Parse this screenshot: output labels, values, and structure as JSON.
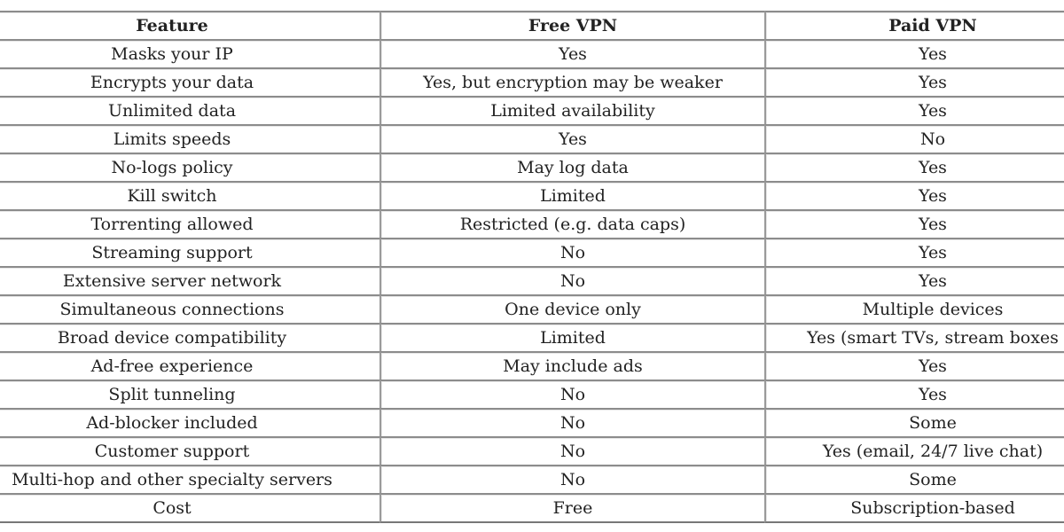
{
  "table": {
    "headers": [
      "Feature",
      "Free VPN",
      "Paid VPN"
    ],
    "rows": [
      [
        "Masks your IP",
        "Yes",
        "Yes"
      ],
      [
        "Encrypts your data",
        "Yes, but encryption may be weaker",
        "Yes"
      ],
      [
        "Unlimited data",
        "Limited availability",
        "Yes"
      ],
      [
        "Limits speeds",
        "Yes",
        "No"
      ],
      [
        "No-logs policy",
        "May log data",
        "Yes"
      ],
      [
        "Kill switch",
        "Limited",
        "Yes"
      ],
      [
        "Torrenting allowed",
        "Restricted (e.g. data caps)",
        "Yes"
      ],
      [
        "Streaming support",
        "No",
        "Yes"
      ],
      [
        "Extensive server network",
        "No",
        "Yes"
      ],
      [
        "Simultaneous connections",
        "One device only",
        "Multiple devices"
      ],
      [
        "Broad device compatibility",
        "Limited",
        "Yes (smart TVs, stream boxes"
      ],
      [
        "Ad-free experience",
        "May include ads",
        "Yes"
      ],
      [
        "Split tunneling",
        "No",
        "Yes"
      ],
      [
        "Ad-blocker included",
        "No",
        "Some"
      ],
      [
        "Customer support",
        "No",
        "Yes (email, 24/7 live chat)"
      ],
      [
        "Multi-hop and other specialty servers",
        "No",
        "Some"
      ],
      [
        "Cost",
        "Free",
        "Subscription-based"
      ]
    ]
  }
}
